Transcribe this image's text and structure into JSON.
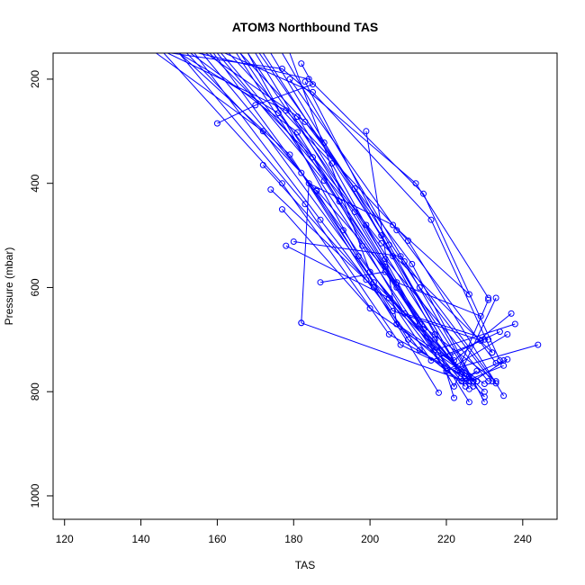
{
  "chart_data": {
    "type": "line",
    "title": "ATOM3 Northbound TAS",
    "xlabel": "TAS",
    "ylabel": "Pressure (mbar)",
    "xlim": [
      117,
      249
    ],
    "ylim": [
      1045,
      150
    ],
    "y_reversed": true,
    "x_ticks": [
      "120",
      "140",
      "160",
      "180",
      "200",
      "220",
      "240"
    ],
    "y_ticks": [
      "200",
      "400",
      "600",
      "800",
      "1000"
    ],
    "series_color": "#0000ff",
    "marker": "open-circle",
    "grid": false,
    "series": [
      {
        "x": [
          148,
          177,
          212,
          231
        ],
        "y": [
          150,
          180,
          400,
          620
        ]
      },
      {
        "x": [
          155,
          184,
          214,
          234
        ],
        "y": [
          150,
          200,
          420,
          740
        ]
      },
      {
        "x": [
          162,
          185,
          216,
          232
        ],
        "y": [
          150,
          225,
          470,
          725
        ]
      },
      {
        "x": [
          147,
          178,
          210,
          235
        ],
        "y": [
          150,
          260,
          510,
          808
        ]
      },
      {
        "x": [
          150,
          176,
          203,
          232
        ],
        "y": [
          150,
          265,
          515,
          725
        ]
      },
      {
        "x": [
          157,
          183,
          211,
          230
        ],
        "y": [
          150,
          282,
          555,
          820
        ]
      },
      {
        "x": [
          144,
          172,
          201,
          230
        ],
        "y": [
          150,
          300,
          590,
          800
        ]
      },
      {
        "x": [
          153,
          181,
          207,
          226
        ],
        "y": [
          150,
          302,
          600,
          820
        ]
      },
      {
        "x": [
          166,
          188,
          213,
          232
        ],
        "y": [
          150,
          322,
          600,
          780
        ]
      },
      {
        "x": [
          150,
          179,
          206,
          229
        ],
        "y": [
          150,
          345,
          645,
          702
        ]
      },
      {
        "x": [
          158,
          185,
          209,
          231
        ],
        "y": [
          150,
          350,
          650,
          700
        ]
      },
      {
        "x": [
          163,
          190,
          214,
          230
        ],
        "y": [
          150,
          362,
          680,
          810
        ]
      },
      {
        "x": [
          152,
          182,
          207,
          227
        ],
        "y": [
          150,
          380,
          670,
          790
        ]
      },
      {
        "x": [
          160,
          188,
          213,
          233
        ],
        "y": [
          150,
          395,
          670,
          780
        ]
      },
      {
        "x": [
          146,
          177,
          205,
          227
        ],
        "y": [
          150,
          400,
          690,
          780
        ]
      },
      {
        "x": [
          171,
          196,
          217,
          222
        ],
        "y": [
          150,
          410,
          690,
          812
        ]
      },
      {
        "x": [
          156,
          186,
          210,
          225
        ],
        "y": [
          150,
          415,
          700,
          790
        ]
      },
      {
        "x": [
          166,
          192,
          217,
          226
        ],
        "y": [
          150,
          435,
          700,
          780
        ]
      },
      {
        "x": [
          150,
          183,
          208,
          228
        ],
        "y": [
          150,
          440,
          710,
          780
        ]
      },
      {
        "x": [
          161,
          196,
          217,
          238
        ],
        "y": [
          150,
          455,
          720,
          670
        ]
      },
      {
        "x": [
          154,
          187,
          213,
          224
        ],
        "y": [
          150,
          470,
          720,
          780
        ]
      },
      {
        "x": [
          168,
          199,
          221,
          234
        ],
        "y": [
          150,
          480,
          730,
          685
        ]
      },
      {
        "x": [
          159,
          193,
          216,
          230
        ],
        "y": [
          150,
          490,
          740,
          700
        ]
      },
      {
        "x": [
          172,
          203,
          222,
          237
        ],
        "y": [
          150,
          500,
          740,
          650
        ]
      },
      {
        "x": [
          165,
          198,
          220,
          244
        ],
        "y": [
          150,
          520,
          760,
          710
        ]
      },
      {
        "x": [
          174,
          206,
          226,
          235
        ],
        "y": [
          150,
          540,
          770,
          740
        ]
      },
      {
        "x": [
          177,
          209,
          227,
          236
        ],
        "y": [
          150,
          550,
          780,
          738
        ]
      },
      {
        "x": [
          170,
          204,
          222,
          233
        ],
        "y": [
          150,
          560,
          790,
          620
        ]
      },
      {
        "x": [
          179,
          200,
          224,
          228
        ],
        "y": [
          150,
          570,
          780,
          760
        ]
      },
      {
        "x": [
          168,
          197,
          220,
          236
        ],
        "y": [
          150,
          540,
          760,
          690
        ]
      },
      {
        "x": [
          182,
          185,
          170,
          160
        ],
        "y": [
          170,
          210,
          250,
          285
        ]
      },
      {
        "x": [
          199,
          207,
          230
        ],
        "y": [
          300,
          670,
          785
        ]
      },
      {
        "x": [
          180,
          208,
          233
        ],
        "y": [
          512,
          540,
          784
        ]
      },
      {
        "x": [
          182,
          184,
          206,
          226
        ],
        "y": [
          668,
          400,
          480,
          613
        ]
      },
      {
        "x": [
          187,
          204,
          223,
          231
        ],
        "y": [
          590,
          570,
          760,
          624
        ]
      },
      {
        "x": [
          182,
          225,
          235
        ],
        "y": [
          668,
          780,
          750
        ]
      },
      {
        "x": [
          178,
          205,
          224
        ],
        "y": [
          520,
          620,
          762
        ]
      },
      {
        "x": [
          174,
          201,
          218
        ],
        "y": [
          412,
          600,
          802
        ]
      },
      {
        "x": [
          177,
          200,
          228
        ],
        "y": [
          450,
          640,
          780
        ]
      },
      {
        "x": [
          186,
          207,
          229
        ],
        "y": [
          413,
          590,
          655
        ]
      },
      {
        "x": [
          172,
          199,
          225
        ],
        "y": [
          365,
          585,
          770
        ]
      },
      {
        "x": [
          181,
          204,
          231
        ],
        "y": [
          272,
          545,
          780
        ]
      },
      {
        "x": [
          179,
          207,
          233
        ],
        "y": [
          200,
          490,
          745
        ]
      },
      {
        "x": [
          183,
          205,
          226
        ],
        "y": [
          205,
          518,
          795
        ]
      }
    ]
  }
}
